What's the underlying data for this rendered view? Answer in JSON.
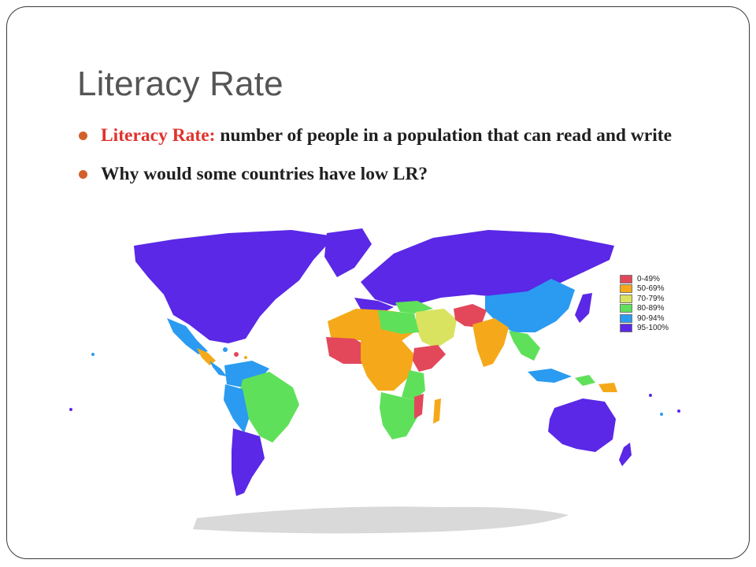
{
  "slide": {
    "title": "Literacy Rate",
    "bullets": [
      {
        "term": "Literacy Rate:",
        "text": " number of people in a population that can read and write"
      },
      {
        "term": "",
        "text": "Why would some countries have low LR?"
      }
    ],
    "bullet_color": "#d2602a",
    "term_color": "#e0322c"
  },
  "map": {
    "legend": [
      {
        "label": "0-49%",
        "color": "#e2485a"
      },
      {
        "label": "50-69%",
        "color": "#f5a91a"
      },
      {
        "label": "70-79%",
        "color": "#d9e35f"
      },
      {
        "label": "80-89%",
        "color": "#5fe05a"
      },
      {
        "label": "90-94%",
        "color": "#2a9bf0"
      },
      {
        "label": "95-100%",
        "color": "#5a28e6"
      }
    ],
    "antarctica_color": "#d9d9d9"
  }
}
